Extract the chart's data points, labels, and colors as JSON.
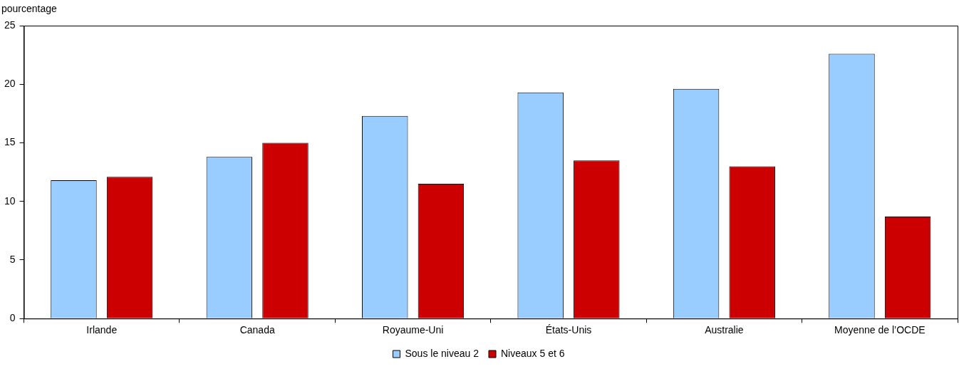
{
  "chart_data": {
    "type": "bar",
    "ylabel": "pourcentage",
    "categories": [
      "Irlande",
      "Canada",
      "Royaume-Uni",
      "États-Unis",
      "Australie",
      "Moyenne de l’OCDE"
    ],
    "series": [
      {
        "name": "Sous le niveau 2",
        "color": "#99ccff",
        "values": [
          11.8,
          13.8,
          17.3,
          19.3,
          19.6,
          22.6
        ]
      },
      {
        "name": "Niveaux 5 et 6",
        "color": "#cc0000",
        "values": [
          12.1,
          15.0,
          11.5,
          13.5,
          13.0,
          8.7
        ]
      }
    ],
    "ylim": [
      0,
      25
    ],
    "yticks": [
      0,
      5,
      10,
      15,
      20,
      25
    ],
    "grid": false,
    "legend": "bottom"
  }
}
